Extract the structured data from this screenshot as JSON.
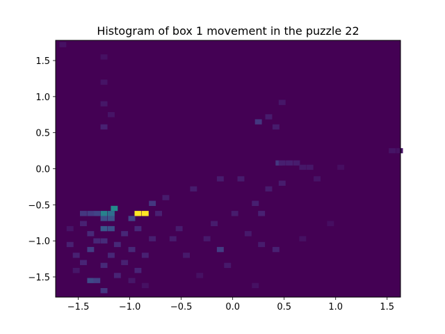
{
  "chart_data": {
    "type": "heatmap",
    "title": "Histogram of box 1 movement in the puzzle 22",
    "xlabel": "",
    "ylabel": "",
    "xlim": [
      -1.72,
      1.63
    ],
    "ylim": [
      -1.78,
      1.78
    ],
    "x_ticks": [
      -1.5,
      -1.0,
      -0.5,
      0.0,
      0.5,
      1.0,
      1.5
    ],
    "x_tick_labels": [
      "−1.5",
      "−1.0",
      "−0.5",
      "0.0",
      "0.5",
      "1.0",
      "1.5"
    ],
    "y_ticks": [
      -1.5,
      -1.0,
      -0.5,
      0.0,
      0.5,
      1.0,
      1.5
    ],
    "y_tick_labels": [
      "−1.5",
      "−1.0",
      "−0.5",
      "0.0",
      "0.5",
      "1.0",
      "1.5"
    ],
    "colormap": "viridis",
    "background_color": "#440154",
    "grid": false,
    "bin_width": 0.067,
    "bin_height": 0.071,
    "cells": [
      {
        "x": -0.92,
        "y": -0.62,
        "v": 1.0
      },
      {
        "x": -0.85,
        "y": -0.62,
        "v": 1.0
      },
      {
        "x": -1.15,
        "y": -0.55,
        "v": 0.6
      },
      {
        "x": -1.25,
        "y": -0.62,
        "v": 0.55
      },
      {
        "x": -1.18,
        "y": -0.62,
        "v": 0.45
      },
      {
        "x": -1.25,
        "y": -0.69,
        "v": 0.3
      },
      {
        "x": -1.18,
        "y": -0.69,
        "v": 0.32
      },
      {
        "x": -1.25,
        "y": -0.83,
        "v": 0.35
      },
      {
        "x": -1.18,
        "y": -0.83,
        "v": 0.3
      },
      {
        "x": -1.32,
        "y": -0.62,
        "v": 0.25
      },
      {
        "x": -1.38,
        "y": -0.62,
        "v": 0.22
      },
      {
        "x": -1.45,
        "y": -0.62,
        "v": 0.2
      },
      {
        "x": -0.98,
        "y": -0.69,
        "v": 0.25
      },
      {
        "x": -0.78,
        "y": -0.48,
        "v": 0.2
      },
      {
        "x": -1.38,
        "y": -1.12,
        "v": 0.22
      },
      {
        "x": -1.38,
        "y": -1.55,
        "v": 0.28
      },
      {
        "x": -1.32,
        "y": -1.55,
        "v": 0.24
      },
      {
        "x": -1.25,
        "y": -1.69,
        "v": 0.2
      },
      {
        "x": -0.12,
        "y": -1.12,
        "v": 0.22
      },
      {
        "x": 0.25,
        "y": 0.65,
        "v": 0.2
      },
      {
        "x": 0.45,
        "y": 0.08,
        "v": 0.2
      },
      {
        "x": -1.58,
        "y": -1.05,
        "v": 0.12
      },
      {
        "x": -1.52,
        "y": -1.2,
        "v": 0.12
      },
      {
        "x": -1.45,
        "y": -1.3,
        "v": 0.13
      },
      {
        "x": -1.45,
        "y": -0.76,
        "v": 0.12
      },
      {
        "x": -1.38,
        "y": -0.9,
        "v": 0.15
      },
      {
        "x": -1.32,
        "y": -1.0,
        "v": 0.14
      },
      {
        "x": -1.25,
        "y": -1.0,
        "v": 0.16
      },
      {
        "x": -1.25,
        "y": -1.34,
        "v": 0.15
      },
      {
        "x": -1.18,
        "y": -1.2,
        "v": 0.14
      },
      {
        "x": -1.12,
        "y": -1.05,
        "v": 0.15
      },
      {
        "x": -1.12,
        "y": -1.48,
        "v": 0.13
      },
      {
        "x": -1.05,
        "y": -0.9,
        "v": 0.14
      },
      {
        "x": -1.05,
        "y": -1.3,
        "v": 0.12
      },
      {
        "x": -0.98,
        "y": -1.12,
        "v": 0.15
      },
      {
        "x": -0.92,
        "y": -0.83,
        "v": 0.14
      },
      {
        "x": -0.92,
        "y": -1.41,
        "v": 0.13
      },
      {
        "x": -0.85,
        "y": -1.2,
        "v": 0.12
      },
      {
        "x": -0.78,
        "y": -0.97,
        "v": 0.11
      },
      {
        "x": -0.72,
        "y": -0.62,
        "v": 0.12
      },
      {
        "x": -0.65,
        "y": -0.4,
        "v": 0.1
      },
      {
        "x": -0.58,
        "y": -0.97,
        "v": 0.1
      },
      {
        "x": -0.52,
        "y": -0.83,
        "v": 0.1
      },
      {
        "x": -0.45,
        "y": -1.2,
        "v": 0.09
      },
      {
        "x": -0.38,
        "y": -0.28,
        "v": 0.1
      },
      {
        "x": -0.25,
        "y": -0.97,
        "v": 0.09
      },
      {
        "x": -0.18,
        "y": -0.76,
        "v": 0.1
      },
      {
        "x": -0.12,
        "y": -0.14,
        "v": 0.1
      },
      {
        "x": -0.05,
        "y": -1.34,
        "v": 0.09
      },
      {
        "x": 0.02,
        "y": -0.62,
        "v": 0.1
      },
      {
        "x": 0.08,
        "y": -0.14,
        "v": 0.1
      },
      {
        "x": 0.15,
        "y": -0.9,
        "v": 0.09
      },
      {
        "x": 0.22,
        "y": -0.48,
        "v": 0.11
      },
      {
        "x": 0.28,
        "y": -0.62,
        "v": 0.12
      },
      {
        "x": 0.28,
        "y": -1.05,
        "v": 0.1
      },
      {
        "x": 0.35,
        "y": -0.28,
        "v": 0.1
      },
      {
        "x": 0.35,
        "y": 0.72,
        "v": 0.1
      },
      {
        "x": 0.42,
        "y": -1.12,
        "v": 0.12
      },
      {
        "x": 0.42,
        "y": 0.58,
        "v": 0.1
      },
      {
        "x": 0.48,
        "y": 0.08,
        "v": 0.11
      },
      {
        "x": 0.48,
        "y": -0.2,
        "v": 0.1
      },
      {
        "x": 0.48,
        "y": 0.92,
        "v": 0.08
      },
      {
        "x": 0.55,
        "y": 0.08,
        "v": 0.11
      },
      {
        "x": 0.62,
        "y": 0.08,
        "v": 0.1
      },
      {
        "x": 0.68,
        "y": 0.02,
        "v": 0.08
      },
      {
        "x": 0.75,
        "y": 0.02,
        "v": 0.08
      },
      {
        "x": 0.82,
        "y": -0.14,
        "v": 0.07
      },
      {
        "x": -1.25,
        "y": 0.58,
        "v": 0.12
      },
      {
        "x": -1.25,
        "y": 0.9,
        "v": 0.08
      },
      {
        "x": -1.25,
        "y": 1.2,
        "v": 0.07
      },
      {
        "x": -1.25,
        "y": 1.55,
        "v": 0.06
      },
      {
        "x": -1.18,
        "y": 0.75,
        "v": 0.07
      },
      {
        "x": -1.65,
        "y": 1.72,
        "v": 0.06
      },
      {
        "x": 1.55,
        "y": 0.25,
        "v": 0.07
      },
      {
        "x": 1.62,
        "y": 0.25,
        "v": 0.06
      },
      {
        "x": 0.22,
        "y": -1.62,
        "v": 0.06
      },
      {
        "x": -1.52,
        "y": -1.41,
        "v": 0.08
      },
      {
        "x": -1.58,
        "y": -0.83,
        "v": 0.07
      },
      {
        "x": -0.98,
        "y": -1.55,
        "v": 0.08
      },
      {
        "x": -0.85,
        "y": -1.62,
        "v": 0.06
      },
      {
        "x": 0.68,
        "y": -0.97,
        "v": 0.06
      },
      {
        "x": 1.05,
        "y": 0.02,
        "v": 0.05
      },
      {
        "x": 0.95,
        "y": -0.76,
        "v": 0.05
      },
      {
        "x": -0.32,
        "y": -1.48,
        "v": 0.06
      }
    ]
  }
}
